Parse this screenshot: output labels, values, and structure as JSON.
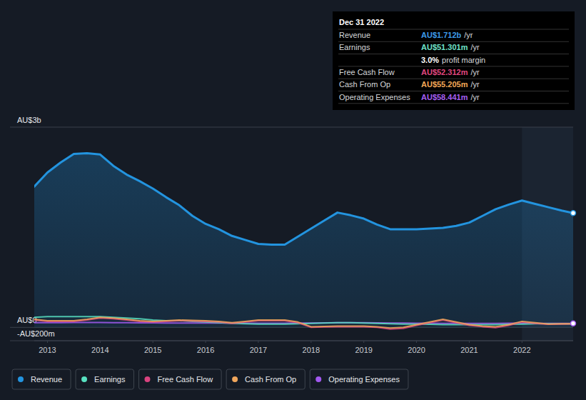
{
  "chart_data": {
    "type": "area",
    "x": [
      2012.75,
      2013,
      2013.25,
      2013.5,
      2013.75,
      2014,
      2014.25,
      2014.5,
      2014.75,
      2015,
      2015.25,
      2015.5,
      2015.75,
      2016,
      2016.25,
      2016.5,
      2016.75,
      2017,
      2017.25,
      2017.5,
      2017.75,
      2018,
      2018.25,
      2018.5,
      2018.75,
      2019,
      2019.25,
      2019.5,
      2019.75,
      2020,
      2020.25,
      2020.5,
      2020.75,
      2021,
      2021.25,
      2021.5,
      2021.75,
      2022,
      2022.25,
      2022.5,
      2022.75,
      2022.97
    ],
    "series": [
      {
        "name": "Revenue",
        "color": "#2394df",
        "type": "area",
        "values": [
          2110,
          2320,
          2470,
          2600,
          2610,
          2590,
          2420,
          2290,
          2190,
          2080,
          1950,
          1830,
          1670,
          1550,
          1470,
          1370,
          1310,
          1250,
          1240,
          1240,
          1360,
          1480,
          1600,
          1720,
          1680,
          1630,
          1540,
          1470,
          1470,
          1470,
          1480,
          1490,
          1520,
          1570,
          1670,
          1770,
          1840,
          1900,
          1850,
          1800,
          1750,
          1712
        ]
      },
      {
        "name": "Earnings",
        "color": "#58e1c1",
        "type": "line",
        "values": [
          150,
          160,
          160,
          160,
          160,
          160,
          150,
          140,
          130,
          110,
          100,
          100,
          90,
          80,
          70,
          60,
          55,
          50,
          50,
          50,
          55,
          60,
          65,
          70,
          70,
          65,
          60,
          55,
          50,
          50,
          45,
          40,
          40,
          40,
          40,
          40,
          45,
          50,
          55,
          55,
          52,
          51.301
        ]
      },
      {
        "name": "Free Cash Flow",
        "color": "#d9437f",
        "type": "line",
        "values": [
          110,
          90,
          90,
          90,
          110,
          140,
          130,
          110,
          90,
          80,
          90,
          100,
          95,
          90,
          80,
          60,
          80,
          100,
          100,
          100,
          70,
          0,
          5,
          10,
          10,
          10,
          0,
          -25,
          -15,
          30,
          70,
          110,
          70,
          30,
          10,
          -5,
          30,
          80,
          60,
          45,
          50,
          52.312
        ]
      },
      {
        "name": "Cash From Op",
        "color": "#f0a65c",
        "type": "line",
        "values": [
          120,
          100,
          100,
          100,
          120,
          150,
          140,
          120,
          100,
          90,
          100,
          110,
          105,
          100,
          90,
          70,
          90,
          110,
          110,
          110,
          80,
          10,
          15,
          20,
          20,
          20,
          10,
          -10,
          0,
          40,
          80,
          120,
          80,
          40,
          20,
          10,
          40,
          90,
          70,
          50,
          55,
          55.205
        ]
      },
      {
        "name": "Operating Expenses",
        "color": "#a259f0",
        "type": "line",
        "values": [
          70,
          70,
          70,
          72,
          72,
          72,
          70,
          70,
          68,
          68,
          66,
          66,
          65,
          65,
          64,
          64,
          63,
          63,
          62,
          62,
          64,
          66,
          68,
          70,
          70,
          70,
          68,
          66,
          64,
          62,
          62,
          60,
          60,
          60,
          60,
          60,
          62,
          62,
          60,
          60,
          59,
          58.441
        ]
      }
    ],
    "xlim": [
      2012.75,
      2022.97
    ],
    "xticks": [
      2013,
      2014,
      2015,
      2016,
      2017,
      2018,
      2019,
      2020,
      2021,
      2022
    ],
    "ylim": [
      -200,
      3000
    ],
    "yticks": [
      {
        "value": -200,
        "label": "-AU$200m"
      },
      {
        "value": 0,
        "label": "AU$0"
      },
      {
        "value": 3000,
        "label": "AU$3b"
      }
    ],
    "grid": true,
    "legend": "bottom",
    "annotations": [
      {
        "text": "Dec 31 2022"
      },
      {
        "label": "Revenue",
        "value": "AU$1.712b",
        "unit": "/yr",
        "color": "#3d9be9"
      },
      {
        "label": "Earnings",
        "value": "AU$51.301m",
        "unit": "/yr",
        "color": "#6fe3c9"
      },
      {
        "value": "3.0%",
        "unit": "profit margin",
        "color": "#ffffff"
      },
      {
        "label": "Free Cash Flow",
        "value": "AU$52.312m",
        "unit": "/yr",
        "color": "#e0477f"
      },
      {
        "label": "Cash From Op",
        "value": "AU$55.205m",
        "unit": "/yr",
        "color": "#f4a958"
      },
      {
        "label": "Operating Expenses",
        "value": "AU$58.441m",
        "unit": "/yr",
        "color": "#a65ff2"
      }
    ]
  }
}
